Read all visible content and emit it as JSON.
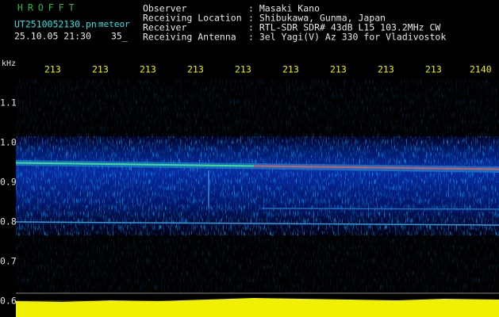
{
  "app": {
    "title": "HROFFT",
    "file_name": "UT2510052130.pn",
    "mode": "meteor",
    "timestamp": "25.10.05 21:30",
    "counter": "35_"
  },
  "info": [
    {
      "key": "Observer",
      "value": ": Masaki Kano"
    },
    {
      "key": "Receiving Location",
      "value": ": Shibukawa, Gunma, Japan"
    },
    {
      "key": "Receiver",
      "value": ": RTL-SDR SDR# 43dB L15 103.2MHz CW"
    },
    {
      "key": "Receiving Antenna",
      "value": ": 3el Yagi(V) Az 330 for Vladivostok"
    }
  ],
  "axis": {
    "y_unit": "kHz",
    "x_labels": [
      "213",
      "213",
      "213",
      "213",
      "213",
      "213",
      "213",
      "213",
      "213",
      "2140"
    ],
    "y_labels": [
      "1.1",
      "1.0",
      "0.9",
      "0.8",
      "0.7",
      "0.6"
    ]
  }
}
